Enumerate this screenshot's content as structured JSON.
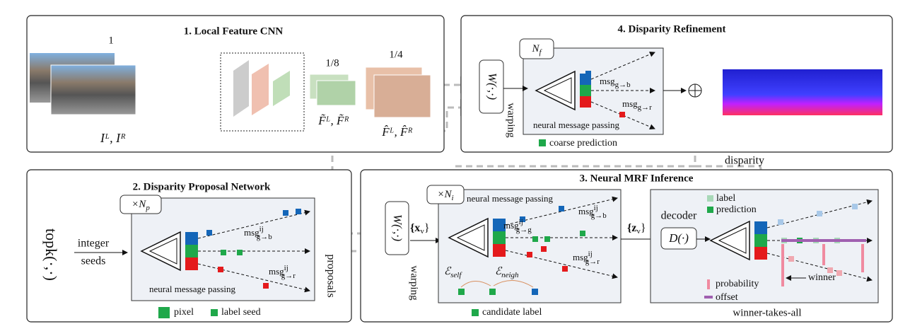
{
  "local_feature_cnn": {
    "title": "1. Local Feature CNN",
    "scale_full": "1",
    "scale_eighth": "1/8",
    "scale_quarter": "1/4",
    "input_label": "Iᴸ, Iᴿ",
    "feature_eighth": "F̃ᴸ, F̃ᴿ",
    "feature_quarter": "F̂ᴸ, F̂ᴿ"
  },
  "disparity_refinement": {
    "title": "4. Disparity Refinement",
    "iterations": {
      "base": "N",
      "sub": "f"
    },
    "warp_op": "W(·,·)",
    "warping": "warping",
    "msg_b": {
      "base": "msg",
      "sub": "g→b"
    },
    "msg_r": {
      "base": "msg",
      "sub": "g→r"
    },
    "passing": "neural message passing",
    "legend": "coarse prediction",
    "output": "disparity"
  },
  "proposal_network": {
    "title": "2. Disparity Proposal Network",
    "iterations": {
      "base": "×N",
      "sub": "p"
    },
    "topk": "topk(·,·)",
    "seeds_input": [
      "integer",
      "seeds"
    ],
    "msg_b": {
      "base": "msg",
      "sup": "ij",
      "sub": "g→b"
    },
    "msg_r": {
      "base": "msg",
      "sup": "ij",
      "sub": "g→r"
    },
    "passing": "neural message passing",
    "output": "proposals",
    "legend_pixel": "pixel",
    "legend_seed": "label seed"
  },
  "mrf_inference": {
    "title": "3. Neural MRF Inference",
    "iterations": {
      "base": "×N",
      "sub": "i"
    },
    "passing": "neural message passing",
    "warp_op": "W(·,·)",
    "input": {
      "base": "{x",
      "sub": "v",
      "tail": "}"
    },
    "warping": "warping",
    "msg_b": {
      "base": "msg",
      "sup": "ij",
      "sub": "g→b"
    },
    "msg_g": {
      "base": "msg",
      "sup": "ij",
      "sub": "g→g"
    },
    "msg_r": {
      "base": "msg",
      "sup": "ij",
      "sub": "g→r"
    },
    "energy_self": {
      "base": "ℰ",
      "sub": "self"
    },
    "energy_neigh": {
      "base": "ℰ",
      "sub": "neigh"
    },
    "legend": "candidate label",
    "features": {
      "base": "{z",
      "sub": "v",
      "tail": "}"
    },
    "decoder": "decoder",
    "decoder_op": "D(·)",
    "legend_label": "label",
    "legend_prediction": "prediction",
    "legend_probability": "probability",
    "legend_offset": "offset",
    "winner": "winner",
    "caption": "winner-takes-all"
  }
}
